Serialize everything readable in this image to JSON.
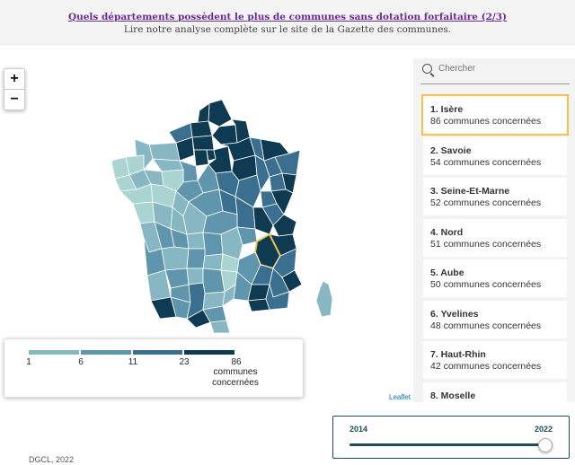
{
  "header": {
    "title": "Quels départements possèdent le plus de communes sans dotation forfaitaire (2/3)",
    "subtitle": "Lire notre analyse complète sur le site de la Gazette des communes."
  },
  "zoom": {
    "in_label": "+",
    "out_label": "−"
  },
  "search": {
    "placeholder": "Chercher"
  },
  "ranking": [
    {
      "name": "1. Isère",
      "count": "86 communes concernées",
      "selected": true
    },
    {
      "name": "2. Savoie",
      "count": "54 communes concernées"
    },
    {
      "name": "3. Seine-Et-Marne",
      "count": "52 communes concernées"
    },
    {
      "name": "4. Nord",
      "count": "51 communes concernées"
    },
    {
      "name": "5. Aube",
      "count": "50 communes concernées"
    },
    {
      "name": "6. Yvelines",
      "count": "48 communes concernées"
    },
    {
      "name": "7. Haut-Rhin",
      "count": "42 communes concernées"
    },
    {
      "name": "8. Moselle",
      "count": ""
    }
  ],
  "legend": {
    "ticks": [
      "1",
      "6",
      "11",
      "23",
      "86"
    ],
    "unit": "communes concernées",
    "colors": [
      "#a9d4d1",
      "#86b7c2",
      "#5f95ad",
      "#3b6f90",
      "#0e3a52"
    ]
  },
  "attribution": "Leaflet",
  "source": "DGCL, 2022",
  "slider": {
    "start_year": "2014",
    "end_year": "2022",
    "value": 2022
  },
  "colors": {
    "selected_outline": "#f2c14e",
    "title_link": "#6a2c91",
    "dark": "#1f4a5e"
  }
}
